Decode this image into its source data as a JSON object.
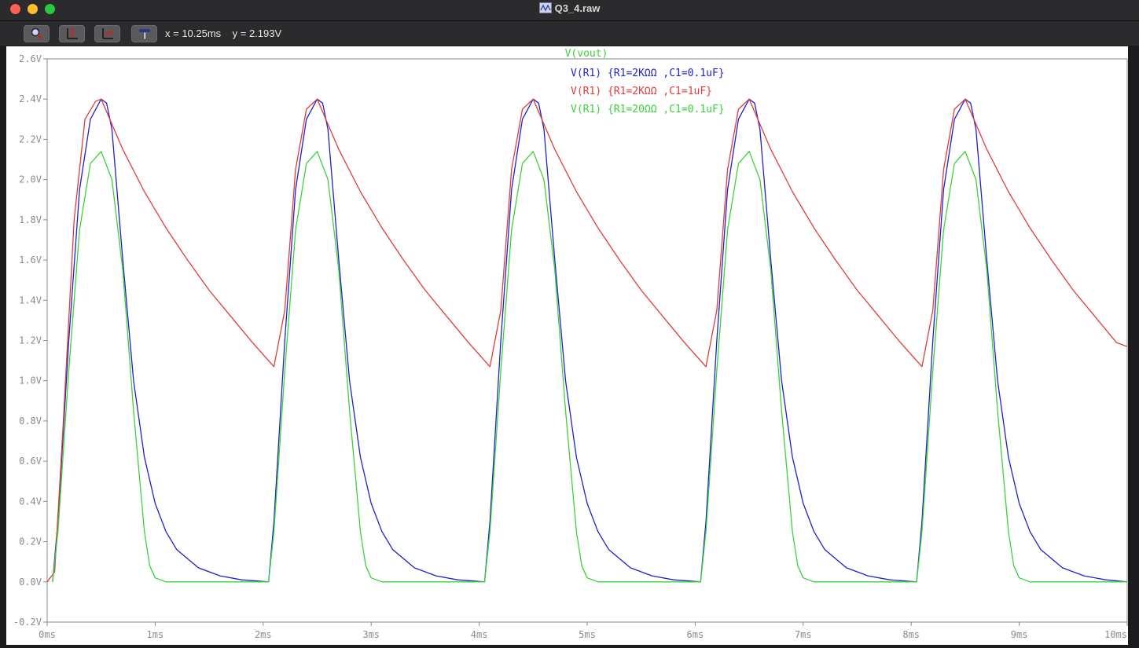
{
  "window": {
    "title": "Q3_4.raw"
  },
  "toolbar": {
    "buttons": [
      "zoom-area",
      "autorange",
      "zoom-back",
      "pan"
    ],
    "cursor_x": "x = 10.25ms",
    "cursor_y": "y = 2.193V"
  },
  "colors": {
    "trace_blue": "#1f1fcc",
    "trace_red": "#e23b3b",
    "trace_green": "#39d339",
    "axis": "#8a8a8a"
  },
  "chart_data": {
    "type": "line",
    "title": "V(vout)",
    "xlabel": "",
    "ylabel": "",
    "xlim": [
      0,
      10
    ],
    "ylim": [
      -0.2,
      2.6
    ],
    "x_unit": "ms",
    "y_unit": "V",
    "x_ticks": [
      "0ms",
      "1ms",
      "2ms",
      "3ms",
      "4ms",
      "5ms",
      "6ms",
      "7ms",
      "8ms",
      "9ms",
      "10ms"
    ],
    "y_ticks": [
      "2.6V",
      "2.4V",
      "2.2V",
      "2.0V",
      "1.8V",
      "1.6V",
      "1.4V",
      "1.2V",
      "1.0V",
      "0.8V",
      "0.6V",
      "0.4V",
      "0.2V",
      "0.0V",
      "-0.2V"
    ],
    "legend_placement": "top-center",
    "series": [
      {
        "name": "V(R1) {R1=2KΩΩ  ,C1=0.1uF}",
        "color": "#1f1fcc",
        "x": [
          0.05,
          0.1,
          0.2,
          0.3,
          0.4,
          0.5,
          0.55,
          0.6,
          0.7,
          0.8,
          0.9,
          1.0,
          1.1,
          1.2,
          1.4,
          1.6,
          1.8,
          2.05,
          2.1,
          2.2,
          2.3,
          2.4,
          2.5,
          2.55,
          2.6,
          2.7,
          2.8,
          2.9,
          3.0,
          3.1,
          3.2,
          3.4,
          3.6,
          3.8,
          4.05,
          4.1,
          4.2,
          4.3,
          4.4,
          4.5,
          4.55,
          4.6,
          4.7,
          4.8,
          4.9,
          5.0,
          5.1,
          5.2,
          5.4,
          5.6,
          5.8,
          6.05,
          6.1,
          6.2,
          6.3,
          6.4,
          6.5,
          6.55,
          6.6,
          6.7,
          6.8,
          6.9,
          7.0,
          7.1,
          7.2,
          7.4,
          7.6,
          7.8,
          8.05,
          8.1,
          8.2,
          8.3,
          8.4,
          8.5,
          8.55,
          8.6,
          8.7,
          8.8,
          8.9,
          9.0,
          9.1,
          9.2,
          9.4,
          9.6,
          9.8,
          10.0
        ],
        "y": [
          0.0,
          0.3,
          1.2,
          1.95,
          2.3,
          2.4,
          2.38,
          2.25,
          1.6,
          1.0,
          0.62,
          0.39,
          0.25,
          0.16,
          0.07,
          0.03,
          0.01,
          0.0,
          0.3,
          1.2,
          1.95,
          2.3,
          2.4,
          2.38,
          2.25,
          1.6,
          1.0,
          0.62,
          0.39,
          0.25,
          0.16,
          0.07,
          0.03,
          0.01,
          0.0,
          0.3,
          1.2,
          1.95,
          2.3,
          2.4,
          2.38,
          2.25,
          1.6,
          1.0,
          0.62,
          0.39,
          0.25,
          0.16,
          0.07,
          0.03,
          0.01,
          0.0,
          0.3,
          1.2,
          1.95,
          2.3,
          2.4,
          2.38,
          2.25,
          1.6,
          1.0,
          0.62,
          0.39,
          0.25,
          0.16,
          0.07,
          0.03,
          0.01,
          0.0,
          0.3,
          1.2,
          1.95,
          2.3,
          2.4,
          2.38,
          2.25,
          1.6,
          1.0,
          0.62,
          0.39,
          0.25,
          0.16,
          0.07,
          0.03,
          0.01,
          0.0
        ]
      },
      {
        "name": "V(R1) {R1=2KΩΩ  ,C1=1uF}",
        "color": "#e23b3b",
        "x": [
          0.0,
          0.07,
          0.15,
          0.25,
          0.35,
          0.45,
          0.5,
          0.7,
          0.9,
          1.1,
          1.3,
          1.5,
          1.7,
          1.9,
          2.1,
          2.2,
          2.3,
          2.4,
          2.5,
          2.7,
          2.9,
          3.1,
          3.3,
          3.5,
          3.7,
          3.9,
          4.1,
          4.2,
          4.3,
          4.4,
          4.5,
          4.7,
          4.9,
          5.1,
          5.3,
          5.5,
          5.7,
          5.9,
          6.1,
          6.2,
          6.3,
          6.4,
          6.5,
          6.7,
          6.9,
          7.1,
          7.3,
          7.5,
          7.7,
          7.9,
          8.1,
          8.2,
          8.3,
          8.4,
          8.5,
          8.7,
          8.9,
          9.1,
          9.3,
          9.5,
          9.7,
          9.9,
          10.0
        ],
        "y": [
          0.0,
          0.05,
          0.8,
          1.8,
          2.3,
          2.39,
          2.4,
          2.15,
          1.94,
          1.76,
          1.6,
          1.45,
          1.32,
          1.19,
          1.07,
          1.35,
          2.05,
          2.35,
          2.4,
          2.15,
          1.94,
          1.76,
          1.6,
          1.45,
          1.32,
          1.19,
          1.07,
          1.35,
          2.05,
          2.35,
          2.4,
          2.15,
          1.94,
          1.76,
          1.6,
          1.45,
          1.32,
          1.19,
          1.07,
          1.35,
          2.05,
          2.35,
          2.4,
          2.15,
          1.94,
          1.76,
          1.6,
          1.45,
          1.32,
          1.19,
          1.07,
          1.35,
          2.05,
          2.35,
          2.4,
          2.15,
          1.94,
          1.76,
          1.6,
          1.45,
          1.32,
          1.19,
          1.17
        ]
      },
      {
        "name": "V(R1) {R1=20ΩΩ   ,C1=0.1uF}",
        "color": "#39d339",
        "x": [
          0.05,
          0.1,
          0.2,
          0.3,
          0.4,
          0.5,
          0.6,
          0.7,
          0.8,
          0.9,
          0.95,
          1.0,
          1.1,
          2.05,
          2.1,
          2.2,
          2.3,
          2.4,
          2.5,
          2.6,
          2.7,
          2.8,
          2.9,
          2.95,
          3.0,
          3.1,
          4.05,
          4.1,
          4.2,
          4.3,
          4.4,
          4.5,
          4.6,
          4.7,
          4.8,
          4.9,
          4.95,
          5.0,
          5.1,
          6.05,
          6.1,
          6.2,
          6.3,
          6.4,
          6.5,
          6.6,
          6.7,
          6.8,
          6.9,
          6.95,
          7.0,
          7.1,
          8.05,
          8.1,
          8.2,
          8.3,
          8.4,
          8.5,
          8.6,
          8.7,
          8.8,
          8.9,
          8.95,
          9.0,
          9.1,
          10.0
        ],
        "y": [
          0.0,
          0.25,
          1.05,
          1.75,
          2.08,
          2.14,
          2.0,
          1.55,
          0.85,
          0.25,
          0.08,
          0.02,
          0.0,
          0.0,
          0.25,
          1.05,
          1.75,
          2.08,
          2.14,
          2.0,
          1.55,
          0.85,
          0.25,
          0.08,
          0.02,
          0.0,
          0.0,
          0.25,
          1.05,
          1.75,
          2.08,
          2.14,
          2.0,
          1.55,
          0.85,
          0.25,
          0.08,
          0.02,
          0.0,
          0.0,
          0.25,
          1.05,
          1.75,
          2.08,
          2.14,
          2.0,
          1.55,
          0.85,
          0.25,
          0.08,
          0.02,
          0.0,
          0.0,
          0.25,
          1.05,
          1.75,
          2.08,
          2.14,
          2.0,
          1.55,
          0.85,
          0.25,
          0.08,
          0.02,
          0.0,
          0.0
        ]
      }
    ]
  }
}
